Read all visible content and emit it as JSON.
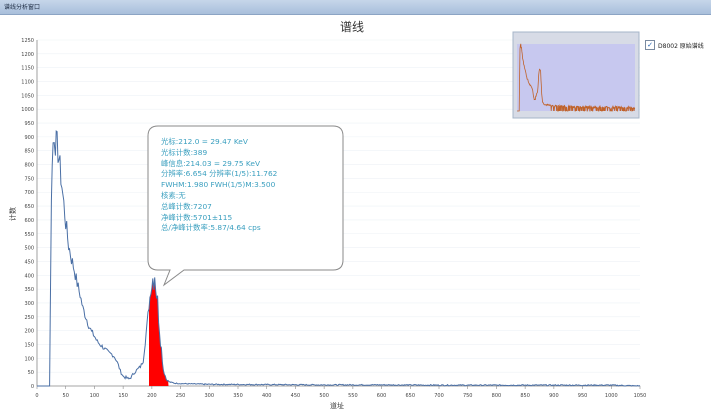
{
  "window": {
    "title": "谱线分析窗口"
  },
  "legend": {
    "checked": true,
    "check_glyph": "✓",
    "label": "D8002 原始谱线"
  },
  "callout": {
    "lines": [
      "光标:212.0 = 29.47 KeV",
      "光标计数:389",
      "峰信息:214.03 = 29.75 KeV",
      "分辨率:6.654  分辨率(1/5):11.762",
      "FWHM:1.980  FWH(1/5)M:3.500",
      "核素:无",
      "总峰计数:7207",
      "净峰计数:5701±115",
      "总/净峰计数率:5.87/4.64 cps"
    ]
  },
  "colors": {
    "series": "#4a6fa5",
    "peak": "#ff0000",
    "grid": "#eef2f6",
    "thumb_bg": "#c7c8ef",
    "thumb_series": "#c0622a"
  },
  "chart_data": {
    "type": "line",
    "title": "谱线",
    "xlabel": "道址",
    "ylabel": "计数",
    "xlim": [
      0,
      1050
    ],
    "ylim": [
      0,
      1250
    ],
    "xticks": [
      0,
      50,
      100,
      150,
      200,
      250,
      300,
      350,
      400,
      450,
      500,
      550,
      600,
      650,
      700,
      750,
      800,
      850,
      900,
      950,
      1000,
      1050
    ],
    "yticks": [
      0,
      50,
      100,
      150,
      200,
      250,
      300,
      350,
      400,
      450,
      500,
      550,
      600,
      650,
      700,
      750,
      800,
      850,
      900,
      950,
      1000,
      1050,
      1100,
      1150,
      1200,
      1250
    ],
    "grid": true,
    "legend_position": "top-right",
    "series": [
      {
        "name": "D8002 原始谱线",
        "x": [
          0,
          10,
          20,
          22,
          23,
          25,
          28,
          30,
          32,
          35,
          38,
          40,
          45,
          50,
          55,
          60,
          65,
          70,
          75,
          80,
          85,
          90,
          95,
          100,
          105,
          110,
          115,
          120,
          125,
          130,
          135,
          140,
          145,
          150,
          155,
          160,
          165,
          170,
          175,
          180,
          185,
          190,
          195,
          200,
          205,
          210,
          215,
          220,
          225,
          230,
          240,
          260,
          300,
          400,
          500,
          600,
          700,
          800,
          900,
          1000,
          1050
        ],
        "y": [
          0,
          0,
          0,
          0,
          240,
          700,
          880,
          915,
          880,
          870,
          820,
          790,
          690,
          590,
          510,
          460,
          420,
          370,
          330,
          280,
          250,
          220,
          195,
          180,
          160,
          150,
          140,
          130,
          120,
          115,
          105,
          85,
          55,
          35,
          30,
          25,
          35,
          50,
          60,
          70,
          90,
          190,
          290,
          380,
          410,
          300,
          170,
          60,
          25,
          15,
          10,
          8,
          6,
          5,
          4,
          4,
          3,
          3,
          3,
          3,
          0
        ]
      }
    ],
    "peak_region": {
      "x_start": 195,
      "x_end": 229
    },
    "cursor": {
      "x": 212.0,
      "y": 389
    }
  }
}
